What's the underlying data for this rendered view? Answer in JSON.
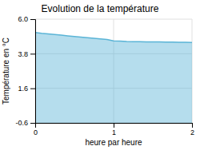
{
  "chart_data": {
    "type": "area",
    "title": "Evolution de la température",
    "xlabel": "heure par heure",
    "ylabel": "Température en °C",
    "x": [
      0.0,
      0.083,
      0.167,
      0.25,
      0.333,
      0.417,
      0.5,
      0.583,
      0.667,
      0.75,
      0.833,
      0.917,
      1.0,
      1.083,
      1.167,
      1.25,
      1.333,
      1.417,
      1.5,
      1.583,
      1.667,
      1.75,
      1.833,
      1.917,
      2.0
    ],
    "values": [
      5.15,
      5.1,
      5.06,
      5.02,
      4.98,
      4.94,
      4.9,
      4.86,
      4.82,
      4.78,
      4.74,
      4.7,
      4.62,
      4.6,
      4.58,
      4.57,
      4.56,
      4.55,
      4.55,
      4.55,
      4.54,
      4.54,
      4.53,
      4.53,
      4.52
    ],
    "color": "#5ab4d6",
    "xlim": [
      0,
      2
    ],
    "ylim": [
      -0.6,
      6.0
    ],
    "xticks": [
      0,
      1,
      2
    ],
    "yticks": [
      -0.6,
      1.6,
      3.8,
      {
        "value": 6.0,
        "label": "6.0"
      }
    ],
    "grid": true
  }
}
